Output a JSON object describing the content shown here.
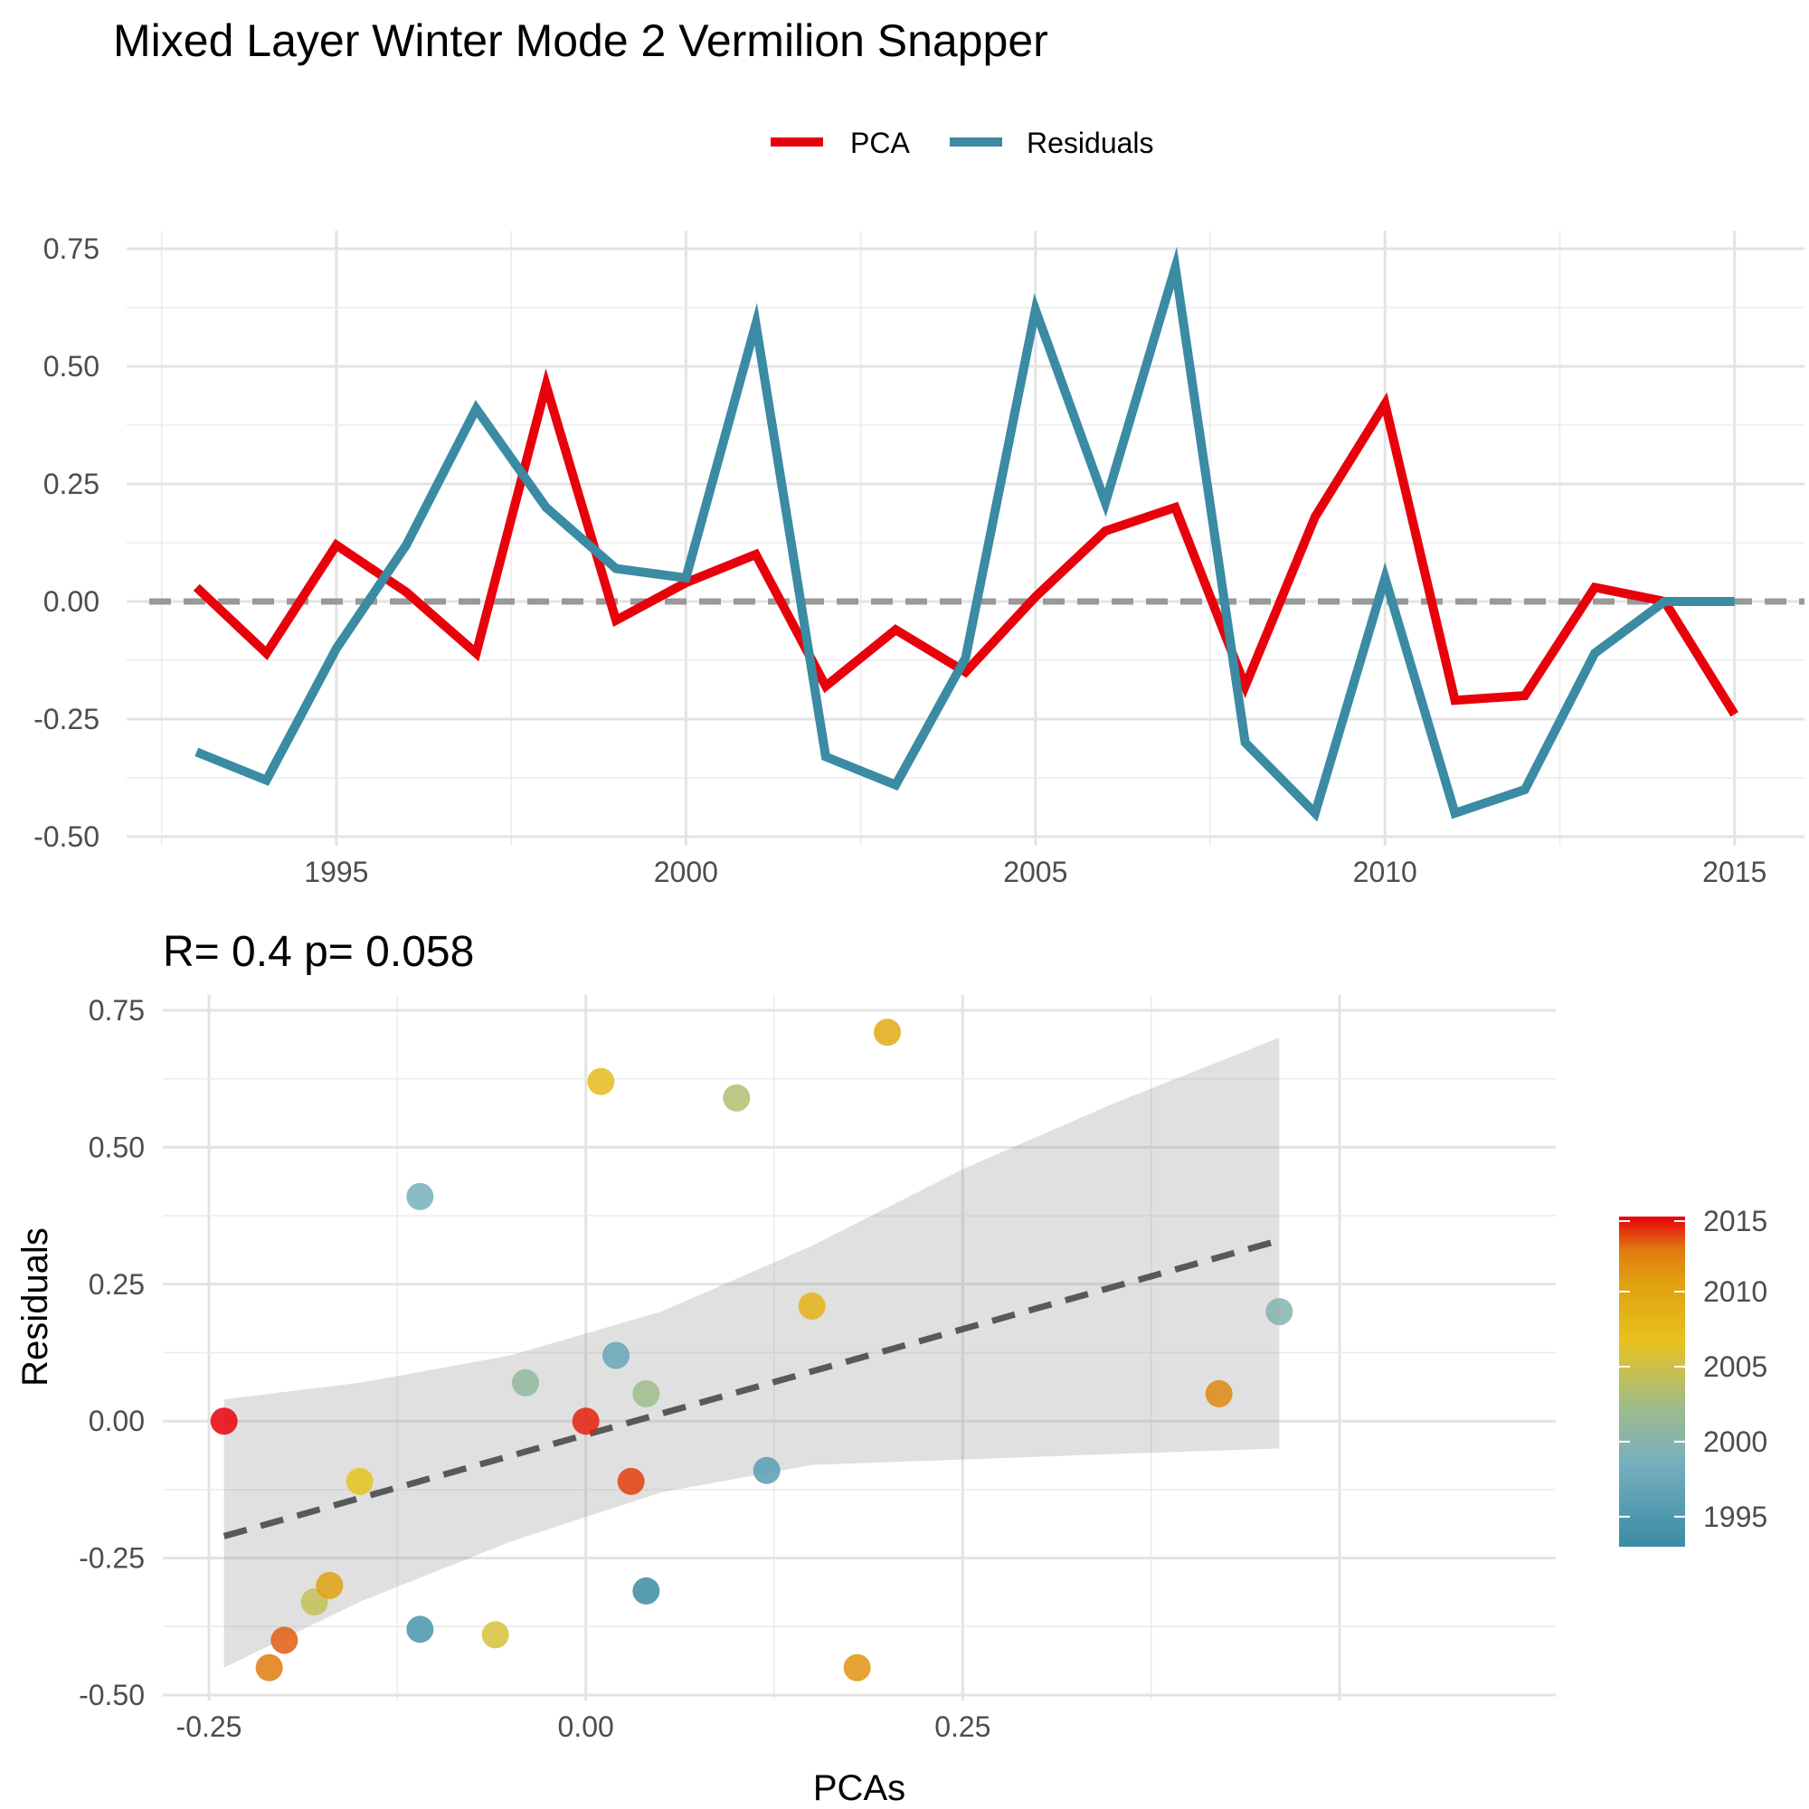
{
  "figure": {
    "title": "Mixed Layer Winter Mode 2 Vermilion Snapper"
  },
  "chart_data": [
    {
      "type": "line",
      "x": [
        1993,
        1994,
        1995,
        1996,
        1997,
        1998,
        1999,
        2000,
        2001,
        2002,
        2003,
        2004,
        2005,
        2006,
        2007,
        2008,
        2009,
        2010,
        2011,
        2012,
        2013,
        2014,
        2015
      ],
      "series": [
        {
          "name": "PCA",
          "color": "#E8000B",
          "values": [
            0.03,
            -0.11,
            0.12,
            0.02,
            -0.11,
            0.46,
            -0.04,
            0.04,
            0.1,
            -0.18,
            -0.06,
            -0.15,
            0.01,
            0.15,
            0.2,
            -0.18,
            0.18,
            0.42,
            -0.21,
            -0.2,
            0.03,
            0.0,
            -0.24
          ]
        },
        {
          "name": "Residuals",
          "color": "#3A8BA3",
          "values": [
            -0.32,
            -0.38,
            -0.1,
            0.12,
            0.41,
            0.2,
            0.07,
            0.05,
            0.59,
            -0.33,
            -0.39,
            -0.12,
            0.62,
            0.21,
            0.71,
            -0.3,
            -0.45,
            0.05,
            -0.45,
            -0.4,
            -0.11,
            0.0,
            0.0
          ]
        }
      ],
      "reference_line": {
        "y": 0,
        "style": "dashed",
        "color": "#999999"
      },
      "ylim": [
        -0.5,
        0.75
      ],
      "yticks": [
        "0.75",
        "0.50",
        "0.25",
        "0.00",
        "-0.25",
        "-0.50"
      ],
      "xlim": [
        1992,
        2016
      ],
      "xticks": [
        "1995",
        "2000",
        "2005",
        "2010",
        "2015"
      ],
      "legend": {
        "position": "top",
        "items": [
          "PCA",
          "Residuals"
        ]
      },
      "grid": true,
      "xlabel": "",
      "ylabel": ""
    },
    {
      "type": "scatter",
      "subtitle": "R= 0.4  p= 0.058",
      "xlabel": "PCAs",
      "ylabel": "Residuals",
      "xlim": [
        -0.25,
        0.5
      ],
      "ylim": [
        -0.5,
        0.75
      ],
      "xticks": [
        "-0.25",
        "0.00",
        "0.25"
      ],
      "yticks": [
        "0.75",
        "0.50",
        "0.25",
        "0.00",
        "-0.25",
        "-0.50"
      ],
      "points": [
        {
          "year": 1993,
          "x": 0.04,
          "y": -0.31
        },
        {
          "year": 1994,
          "x": -0.11,
          "y": -0.38
        },
        {
          "year": 1995,
          "x": 0.12,
          "y": -0.09
        },
        {
          "year": 1996,
          "x": 0.02,
          "y": 0.12
        },
        {
          "year": 1997,
          "x": -0.11,
          "y": 0.41
        },
        {
          "year": 1998,
          "x": 0.46,
          "y": 0.2
        },
        {
          "year": 1999,
          "x": -0.04,
          "y": 0.07
        },
        {
          "year": 2000,
          "x": 0.04,
          "y": 0.05
        },
        {
          "year": 2001,
          "x": 0.1,
          "y": 0.59
        },
        {
          "year": 2002,
          "x": -0.18,
          "y": -0.33
        },
        {
          "year": 2003,
          "x": -0.06,
          "y": -0.39
        },
        {
          "year": 2004,
          "x": -0.15,
          "y": -0.11
        },
        {
          "year": 2005,
          "x": 0.01,
          "y": 0.62
        },
        {
          "year": 2006,
          "x": 0.15,
          "y": 0.21
        },
        {
          "year": 2007,
          "x": 0.2,
          "y": 0.71
        },
        {
          "year": 2008,
          "x": -0.17,
          "y": -0.3
        },
        {
          "year": 2009,
          "x": 0.18,
          "y": -0.45
        },
        {
          "year": 2010,
          "x": 0.42,
          "y": 0.05
        },
        {
          "year": 2011,
          "x": -0.21,
          "y": -0.45
        },
        {
          "year": 2012,
          "x": -0.2,
          "y": -0.4
        },
        {
          "year": 2013,
          "x": 0.03,
          "y": -0.11
        },
        {
          "year": 2014,
          "x": 0.0,
          "y": 0.0
        },
        {
          "year": 2015,
          "x": -0.24,
          "y": 0.0
        }
      ],
      "fit": {
        "style": "dashed",
        "line": [
          [
            -0.24,
            -0.21
          ],
          [
            0.46,
            0.33
          ]
        ],
        "band_upper": [
          [
            -0.24,
            0.04
          ],
          [
            -0.15,
            0.07
          ],
          [
            -0.05,
            0.12
          ],
          [
            0.05,
            0.2
          ],
          [
            0.15,
            0.32
          ],
          [
            0.25,
            0.46
          ],
          [
            0.35,
            0.58
          ],
          [
            0.46,
            0.7
          ]
        ],
        "band_lower": [
          [
            -0.24,
            -0.45
          ],
          [
            -0.15,
            -0.33
          ],
          [
            -0.05,
            -0.22
          ],
          [
            0.05,
            -0.13
          ],
          [
            0.15,
            -0.08
          ],
          [
            0.25,
            -0.07
          ],
          [
            0.35,
            -0.06
          ],
          [
            0.46,
            -0.05
          ]
        ]
      },
      "colorbar": {
        "labels": [
          "2015",
          "2010",
          "2005",
          "2000",
          "1995"
        ],
        "range": [
          1993,
          2015
        ],
        "colors": [
          "#E8000B",
          "#E07A10",
          "#E8C21F",
          "#9EBC8C",
          "#3A8BA3"
        ]
      }
    }
  ]
}
